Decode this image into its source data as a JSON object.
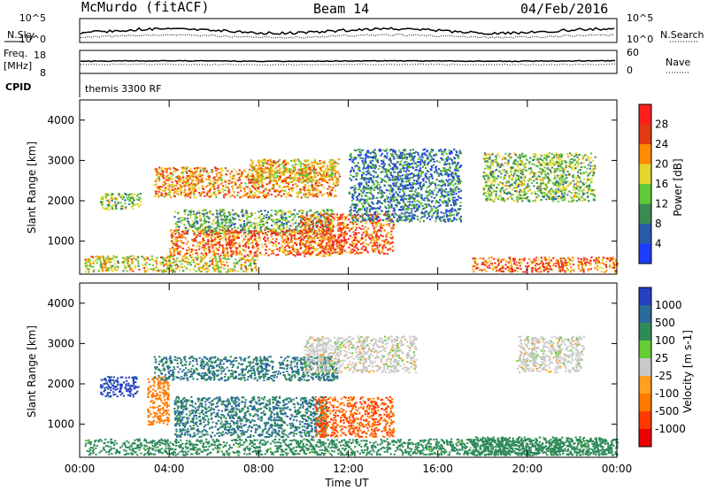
{
  "header": {
    "station": "McMurdo (fitACF)",
    "beam": "Beam 14",
    "date": "04/Feb/2016"
  },
  "summary": {
    "nsky_label": "N.Sky",
    "nsearch_label": "N.Search",
    "freq_label_1": "Freq.",
    "freq_label_2": "[MHz]",
    "nave_label": "Nave",
    "cpid_label": "CPID",
    "cpid_value": "themis 3300 RF",
    "left_ticks_noise": [
      "10^5",
      "10^0"
    ],
    "right_ticks_noise": [
      "10^5",
      "10^0"
    ],
    "left_ticks_freq": [
      "18",
      "8"
    ],
    "right_ticks_freq": [
      "60",
      "0"
    ]
  },
  "colors": {
    "power_scale": [
      "#1f3cff",
      "#2a5aa8",
      "#3b8a52",
      "#5fc93a",
      "#e6d52a",
      "#ff8c00",
      "#e23a14",
      "#ff1e1e"
    ],
    "velocity_scale": [
      "#2540c0",
      "#2a6b9a",
      "#2f8a5a",
      "#66cc33",
      "#c8c8c8",
      "#ffa020",
      "#ff7a00",
      "#ff3a00",
      "#ee0000"
    ]
  },
  "chart_data": [
    {
      "type": "heatmap",
      "title": "",
      "xlabel": "",
      "ylabel": "Slant Range [km]",
      "colorbar_label": "Power [dB]",
      "colorbar_ticks": [
        "28",
        "24",
        "20",
        "16",
        "12",
        "8",
        "4"
      ],
      "colorbar_range": [
        0,
        32
      ],
      "x_ticks": [
        "00:00",
        "04:00",
        "08:00",
        "12:00",
        "16:00",
        "20:00",
        "00:00"
      ],
      "y_ticks": [
        "1000",
        "2000",
        "3000",
        "4000"
      ],
      "ylim": [
        180,
        4500
      ],
      "xlim_hours": [
        0,
        24
      ],
      "bands": [
        {
          "t0": 0.2,
          "t1": 7.9,
          "r0": 250,
          "r1": 650,
          "value": 18
        },
        {
          "t0": 0.9,
          "t1": 2.7,
          "r0": 1800,
          "r1": 2200,
          "value": 14
        },
        {
          "t0": 3.3,
          "t1": 11.5,
          "r0": 2100,
          "r1": 2850,
          "value": 22
        },
        {
          "t0": 7.5,
          "t1": 11.6,
          "r0": 2500,
          "r1": 3050,
          "value": 19
        },
        {
          "t0": 4.2,
          "t1": 11.3,
          "r0": 1200,
          "r1": 1800,
          "value": 12
        },
        {
          "t0": 4.0,
          "t1": 11.3,
          "r0": 650,
          "r1": 1300,
          "value": 24
        },
        {
          "t0": 9.8,
          "t1": 14.0,
          "r0": 700,
          "r1": 1700,
          "value": 25
        },
        {
          "t0": 12.0,
          "t1": 17.0,
          "r0": 1500,
          "r1": 3300,
          "value": 8
        },
        {
          "t0": 17.5,
          "t1": 24.0,
          "r0": 250,
          "r1": 620,
          "value": 24
        },
        {
          "t0": 18.0,
          "t1": 23.0,
          "r0": 2000,
          "r1": 3200,
          "value": 14
        }
      ]
    },
    {
      "type": "heatmap",
      "title": "",
      "xlabel": "Time UT",
      "ylabel": "Slant Range [km]",
      "colorbar_label": "Velocity [m s-1]",
      "colorbar_ticks": [
        "1000",
        "500",
        "100",
        "25",
        "-25",
        "-100",
        "-500",
        "-1000"
      ],
      "x_ticks": [
        "00:00",
        "04:00",
        "08:00",
        "12:00",
        "16:00",
        "20:00",
        "00:00"
      ],
      "y_ticks": [
        "1000",
        "2000",
        "3000",
        "4000"
      ],
      "ylim": [
        180,
        4500
      ],
      "xlim_hours": [
        0,
        24
      ],
      "bands": [
        {
          "t0": 0.2,
          "t1": 24.0,
          "r0": 250,
          "r1": 650,
          "value": 100
        },
        {
          "t0": 0.9,
          "t1": 2.6,
          "r0": 1700,
          "r1": 2200,
          "value": 1000
        },
        {
          "t0": 3.0,
          "t1": 4.0,
          "r0": 1000,
          "r1": 2200,
          "value": -100
        },
        {
          "t0": 3.3,
          "t1": 11.5,
          "r0": 2100,
          "r1": 2700,
          "value": 300
        },
        {
          "t0": 4.2,
          "t1": 11.0,
          "r0": 700,
          "r1": 1700,
          "value": 300
        },
        {
          "t0": 10.5,
          "t1": 14.0,
          "r0": 700,
          "r1": 1700,
          "value": -300
        },
        {
          "t0": 10.0,
          "t1": 15.0,
          "r0": 2300,
          "r1": 3200,
          "value": 0
        },
        {
          "t0": 17.5,
          "t1": 24.0,
          "r0": 250,
          "r1": 700,
          "value": 100
        },
        {
          "t0": 19.5,
          "t1": 22.5,
          "r0": 2300,
          "r1": 3200,
          "value": 0
        }
      ]
    }
  ]
}
